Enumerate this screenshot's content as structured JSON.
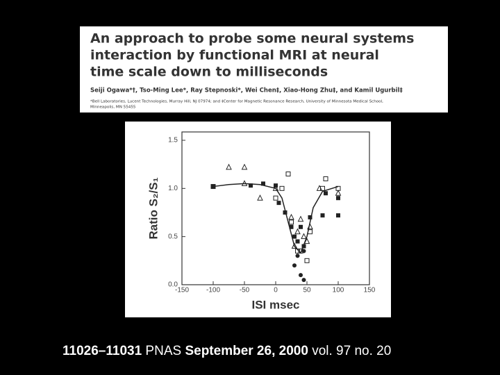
{
  "header": {
    "title_lines": [
      "An approach to probe some neural systems",
      "interaction by functional MRI at neural",
      "time scale down to milliseconds"
    ],
    "authors": "Seiji Ogawa*†, Tso-Ming Lee*, Ray Stepnoski*, Wei Chen‡, Xiao-Hong Zhu‡, and Kamil Ugurbil‡",
    "affiliation_lines": [
      "*Bell Laboratories, Lucent Technologies, Murray Hill, NJ 07974; and ‡Center for Magnetic Resonance Research, University of Minnesota Medical School,",
      "Minneapolis, MN 55455"
    ]
  },
  "chart_data": {
    "type": "scatter",
    "x_label": "ISI  msec",
    "y_label": "Ratio S₂/S₁",
    "xlim": [
      -150,
      150
    ],
    "ylim": [
      0,
      1.5
    ],
    "xticks": [
      -150,
      -100,
      -50,
      0,
      50,
      100,
      150
    ],
    "yticks": [
      {
        "value": 0,
        "label": "0.0"
      },
      0.5,
      {
        "value": 1,
        "label": "1.0"
      },
      1.5
    ],
    "series": [
      {
        "marker": "triangle-open",
        "color": "#222222",
        "x": [
          -75,
          -50,
          -25,
          -50,
          0,
          25,
          35,
          40,
          30,
          45,
          55,
          70,
          100,
          50
        ],
        "values": [
          1.22,
          1.22,
          0.9,
          1.05,
          1.0,
          0.7,
          0.55,
          0.68,
          0.4,
          0.5,
          0.6,
          1.0,
          0.95,
          0.45
        ]
      },
      {
        "marker": "square-filled",
        "color": "#222222",
        "x": [
          -100,
          -40,
          -20,
          0,
          5,
          15,
          25,
          30,
          35,
          40,
          45,
          55,
          75,
          100,
          100,
          80
        ],
        "values": [
          1.02,
          1.03,
          1.05,
          1.03,
          0.85,
          0.75,
          0.6,
          0.5,
          0.45,
          0.6,
          0.4,
          0.7,
          0.72,
          0.72,
          0.9,
          0.95
        ]
      },
      {
        "marker": "square-open",
        "color": "#222222",
        "x": [
          -100,
          20,
          0,
          10,
          25,
          35,
          50,
          55,
          75,
          80,
          100,
          40
        ],
        "values": [
          1.02,
          1.15,
          0.9,
          1.0,
          0.65,
          0.35,
          0.25,
          0.55,
          1.0,
          1.1,
          1.0,
          0.35
        ]
      },
      {
        "marker": "circle-filled",
        "color": "#222222",
        "x": [
          30,
          35,
          40,
          45,
          45
        ],
        "values": [
          0.2,
          0.3,
          0.1,
          0.05,
          0.35
        ]
      },
      {
        "marker": "line",
        "color": "#222222",
        "x": [
          -100,
          -75,
          -50,
          -25,
          0,
          10,
          20,
          30,
          40,
          50,
          60,
          75,
          100
        ],
        "values": [
          1.02,
          1.04,
          1.05,
          1.04,
          1.0,
          0.9,
          0.65,
          0.4,
          0.33,
          0.5,
          0.8,
          0.97,
          1.02
        ]
      }
    ]
  },
  "footer": {
    "pages": "11026–11031",
    "journal": "PNAS",
    "date": "September 26, 2000",
    "volume": "vol. 97",
    "number": "no. 20"
  }
}
